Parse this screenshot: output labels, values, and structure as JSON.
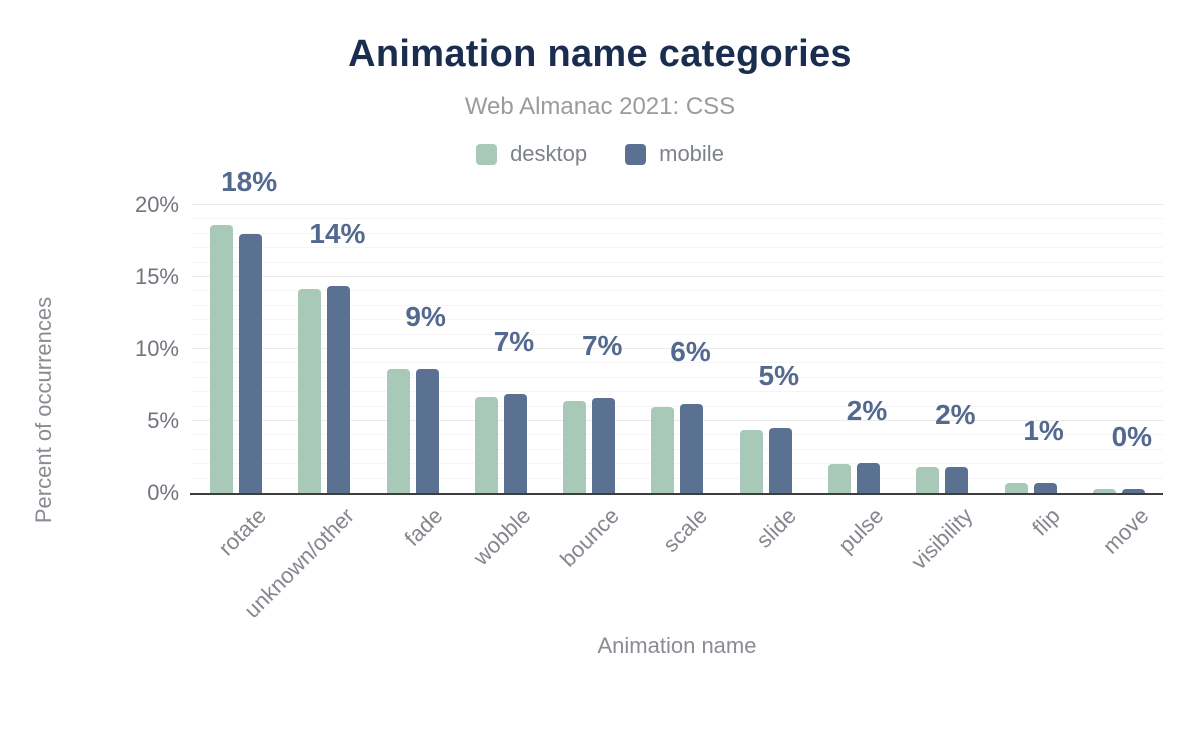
{
  "header": {
    "title": "Animation name categories",
    "subtitle": "Web Almanac 2021: CSS"
  },
  "axes": {
    "x_title": "Animation name",
    "y_title": "Percent of occurrences"
  },
  "colors": {
    "title": "#1b2d4e",
    "subtitle": "#9b9b9b",
    "desktop": "#a8c9b8",
    "mobile": "#5b7191",
    "value_label": "#54698f",
    "axis_text": "#84888e",
    "axis_line": "#3d3d3d"
  },
  "chart_data": {
    "type": "bar",
    "title": "Animation name categories",
    "subtitle": "Web Almanac 2021: CSS",
    "xlabel": "Animation name",
    "ylabel": "Percent of occurrences",
    "categories": [
      "rotate",
      "unknown/other",
      "fade",
      "wobble",
      "bounce",
      "scale",
      "slide",
      "pulse",
      "visibility",
      "flip",
      "move"
    ],
    "series": [
      {
        "name": "desktop",
        "color": "#a8c9b8",
        "values": [
          18.6,
          14.2,
          8.6,
          6.7,
          6.4,
          6.0,
          4.4,
          2.0,
          1.8,
          0.7,
          0.3
        ]
      },
      {
        "name": "mobile",
        "color": "#5b7191",
        "values": [
          18.0,
          14.4,
          8.6,
          6.9,
          6.6,
          6.2,
          4.5,
          2.1,
          1.8,
          0.7,
          0.3
        ]
      }
    ],
    "bar_labels": [
      "18%",
      "14%",
      "9%",
      "7%",
      "7%",
      "6%",
      "5%",
      "2%",
      "2%",
      "1%",
      "0%"
    ],
    "y_ticks": [
      {
        "value": 0,
        "label": "0%"
      },
      {
        "value": 5,
        "label": "5%"
      },
      {
        "value": 10,
        "label": "10%"
      },
      {
        "value": 15,
        "label": "15%"
      },
      {
        "value": 20,
        "label": "20%"
      }
    ],
    "ylim": [
      0,
      20
    ],
    "grid": "horizontal minor every 1%, major every 5%",
    "legend_position": "top-center"
  }
}
